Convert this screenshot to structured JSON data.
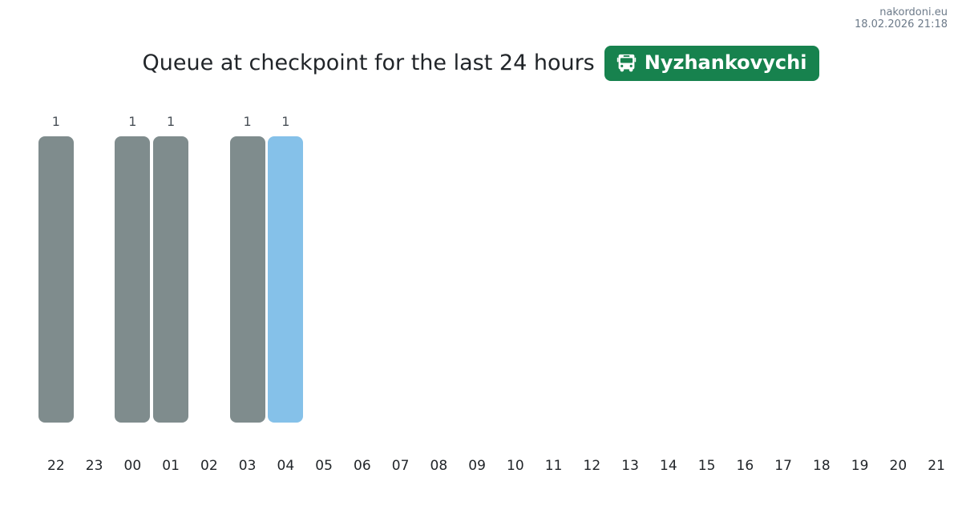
{
  "site": {
    "name": "nakordoni.eu",
    "timestamp": "18.02.2026 21:18"
  },
  "header": {
    "title": "Queue at checkpoint for the last 24 hours",
    "checkpoint_badge": {
      "label": "Nyzhankovychi",
      "icon": "bus-icon",
      "background": "#17824e",
      "text_color": "#ffffff"
    }
  },
  "chart_data": {
    "type": "bar",
    "title": "Queue at checkpoint for the last 24 hours",
    "categories": [
      "22",
      "23",
      "00",
      "01",
      "02",
      "03",
      "04",
      "05",
      "06",
      "07",
      "08",
      "09",
      "10",
      "11",
      "12",
      "13",
      "14",
      "15",
      "16",
      "17",
      "18",
      "19",
      "20",
      "21"
    ],
    "values": [
      1,
      0,
      1,
      1,
      0,
      1,
      1,
      0,
      0,
      0,
      0,
      0,
      0,
      0,
      0,
      0,
      0,
      0,
      0,
      0,
      0,
      0,
      0,
      0
    ],
    "xlabel": "",
    "ylabel": "",
    "ylim": [
      0,
      1
    ],
    "grid": false,
    "legend": "none",
    "value_labels": "shown above non-zero bars only",
    "bar_color": "#7f8c8d",
    "highlight_color": "#85c1e9",
    "highlight_index": 6,
    "highlight_category": "04"
  }
}
